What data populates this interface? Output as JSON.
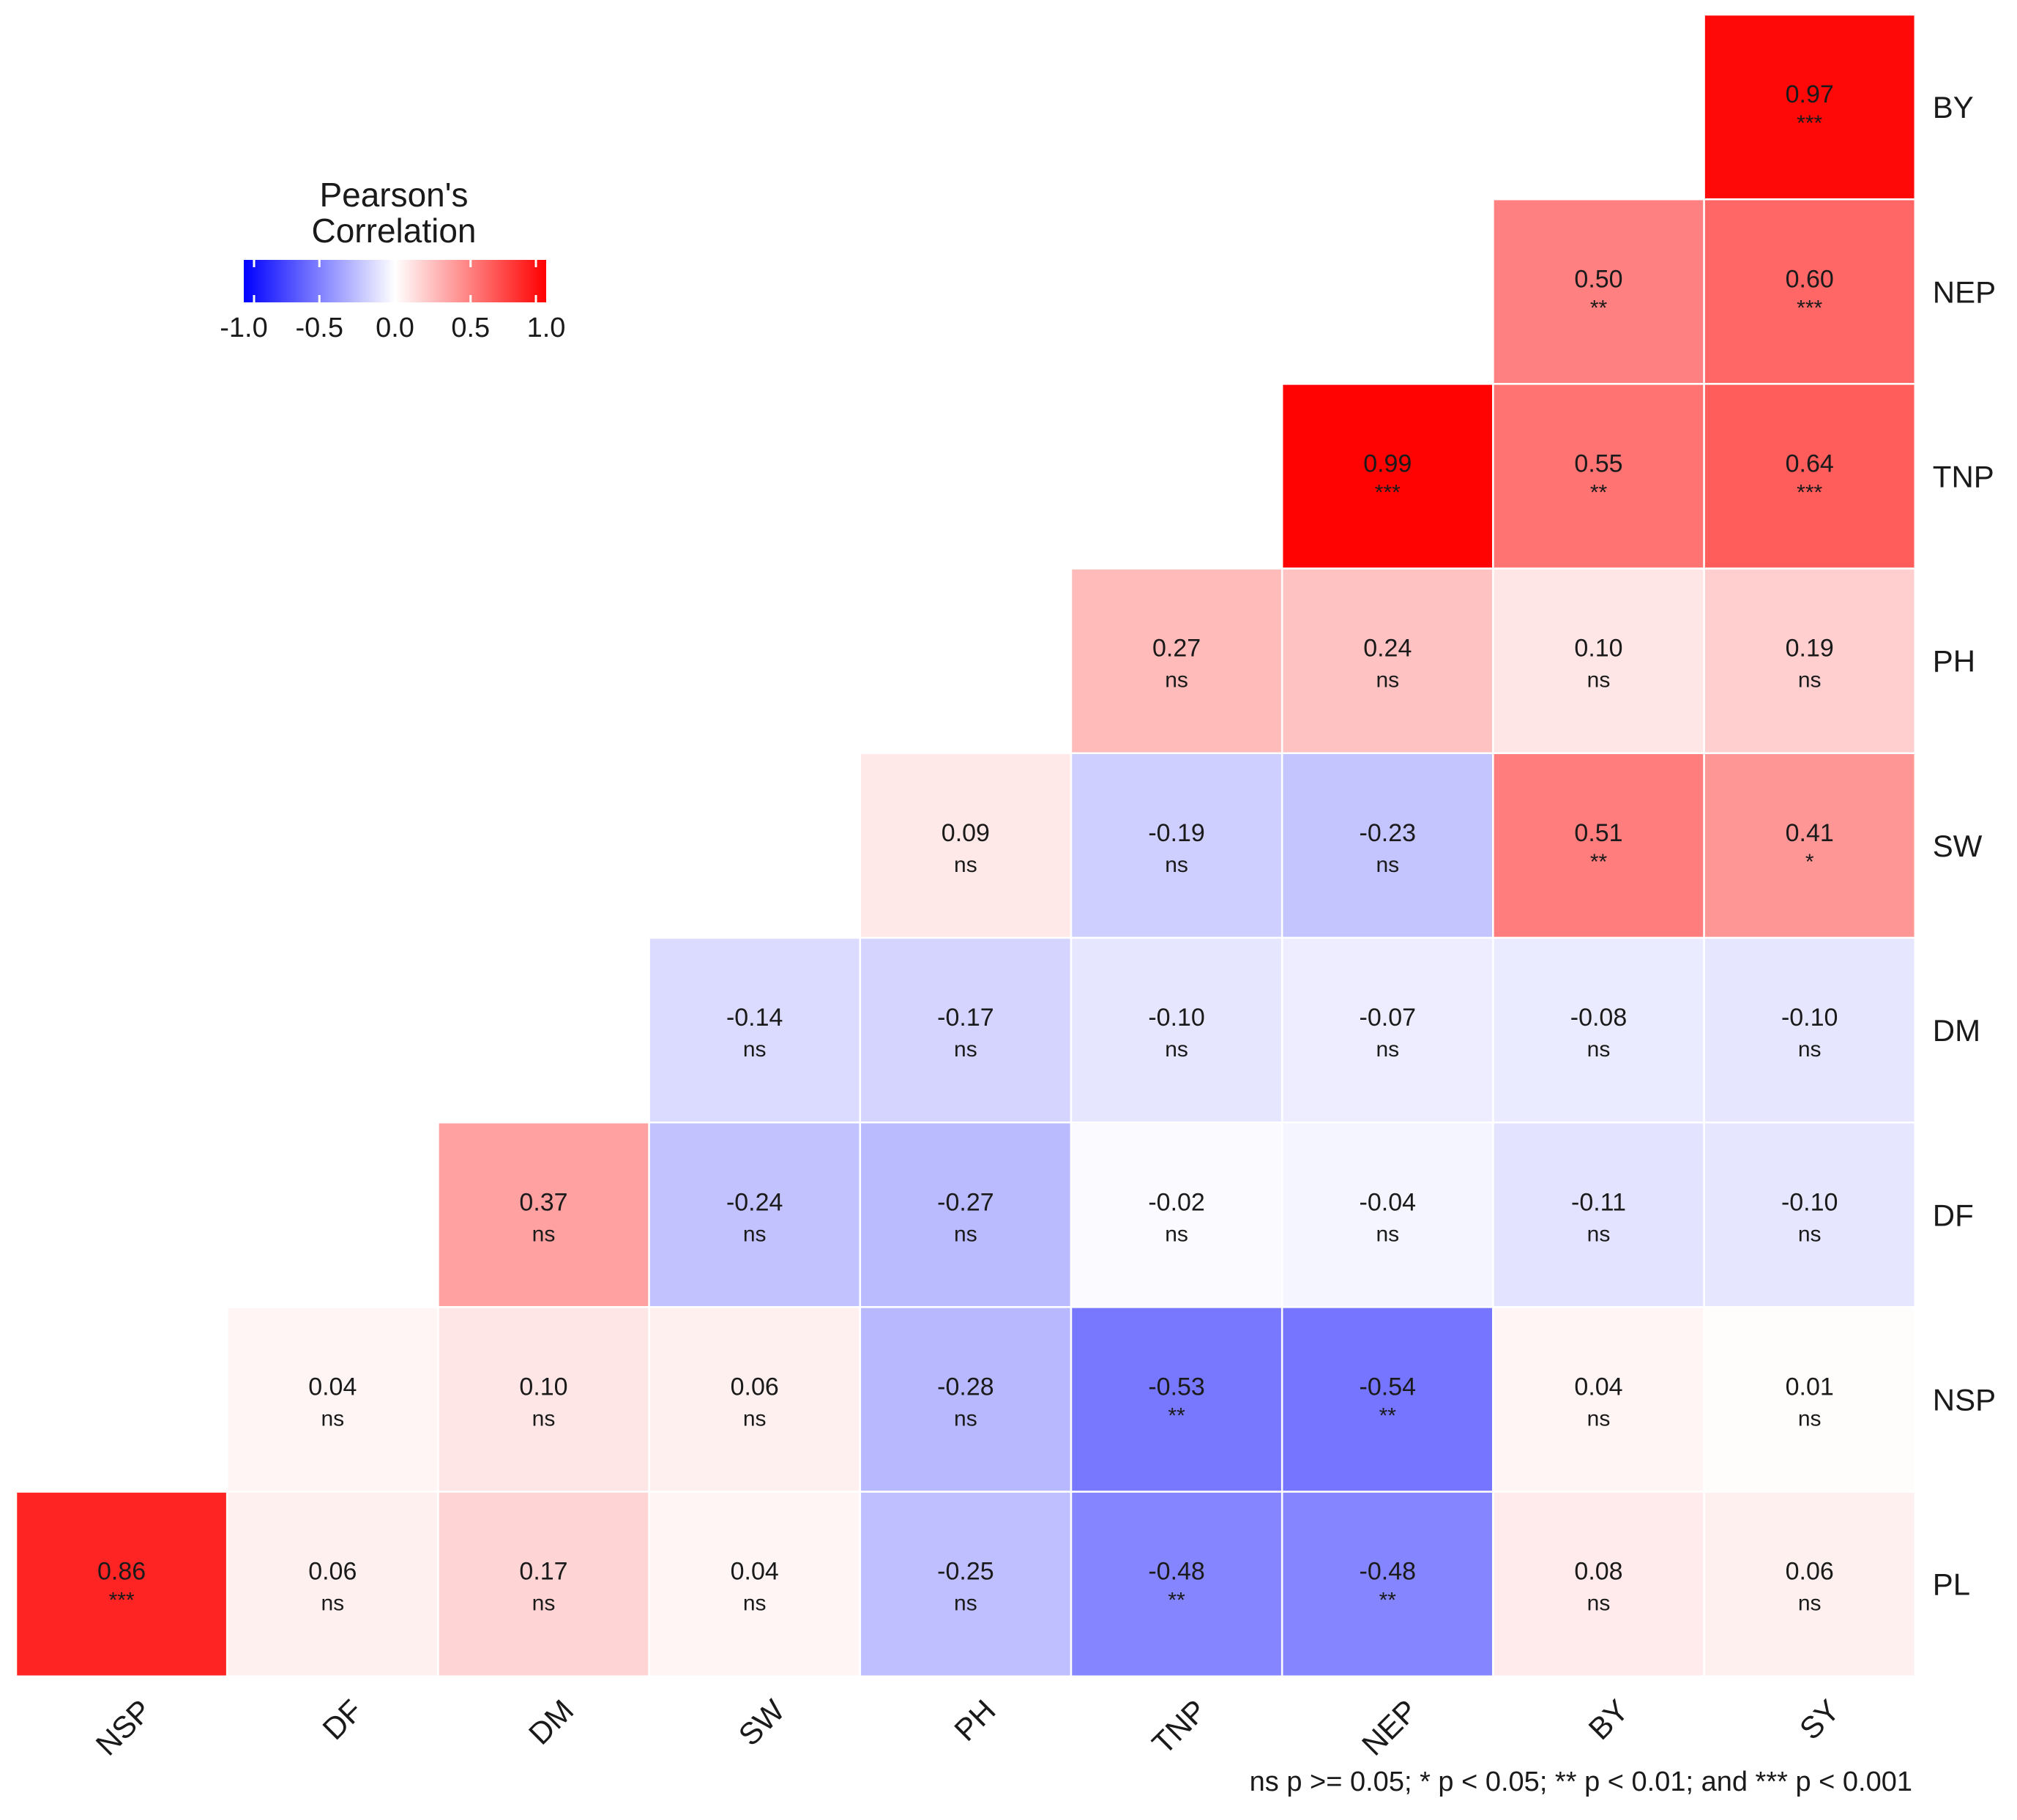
{
  "chart_data": {
    "type": "heatmap",
    "title": "",
    "legend": {
      "title_line1": "Pearson's",
      "title_line2": "Correlation",
      "ticks": [
        "-1.0",
        "-0.5",
        "0.0",
        "0.5",
        "1.0"
      ],
      "tick_values": [
        -1.0,
        -0.5,
        0.0,
        0.5,
        1.0
      ],
      "range": [
        -1.0,
        1.0
      ],
      "placement": "top-left"
    },
    "colors": {
      "low": "#0000ff",
      "mid": "#ffffff",
      "high": "#ff0000"
    },
    "x_labels": [
      "NSP",
      "DF",
      "DM",
      "SW",
      "PH",
      "TNP",
      "NEP",
      "BY",
      "SY"
    ],
    "y_labels": [
      "BY",
      "NEP",
      "TNP",
      "PH",
      "SW",
      "DM",
      "DF",
      "NSP",
      "PL"
    ],
    "cells": [
      {
        "row": 0,
        "col": 8,
        "value": 0.97,
        "label": "0.97",
        "sig": "***"
      },
      {
        "row": 1,
        "col": 7,
        "value": 0.5,
        "label": "0.50",
        "sig": "**"
      },
      {
        "row": 1,
        "col": 8,
        "value": 0.6,
        "label": "0.60",
        "sig": "***"
      },
      {
        "row": 2,
        "col": 6,
        "value": 0.99,
        "label": "0.99",
        "sig": "***"
      },
      {
        "row": 2,
        "col": 7,
        "value": 0.55,
        "label": "0.55",
        "sig": "**"
      },
      {
        "row": 2,
        "col": 8,
        "value": 0.64,
        "label": "0.64",
        "sig": "***"
      },
      {
        "row": 3,
        "col": 5,
        "value": 0.27,
        "label": "0.27",
        "sig": "ns"
      },
      {
        "row": 3,
        "col": 6,
        "value": 0.24,
        "label": "0.24",
        "sig": "ns"
      },
      {
        "row": 3,
        "col": 7,
        "value": 0.1,
        "label": "0.10",
        "sig": "ns"
      },
      {
        "row": 3,
        "col": 8,
        "value": 0.19,
        "label": "0.19",
        "sig": "ns"
      },
      {
        "row": 4,
        "col": 4,
        "value": 0.09,
        "label": "0.09",
        "sig": "ns"
      },
      {
        "row": 4,
        "col": 5,
        "value": -0.19,
        "label": "-0.19",
        "sig": "ns"
      },
      {
        "row": 4,
        "col": 6,
        "value": -0.23,
        "label": "-0.23",
        "sig": "ns"
      },
      {
        "row": 4,
        "col": 7,
        "value": 0.51,
        "label": "0.51",
        "sig": "**"
      },
      {
        "row": 4,
        "col": 8,
        "value": 0.41,
        "label": "0.41",
        "sig": "*"
      },
      {
        "row": 5,
        "col": 3,
        "value": -0.14,
        "label": "-0.14",
        "sig": "ns"
      },
      {
        "row": 5,
        "col": 4,
        "value": -0.17,
        "label": "-0.17",
        "sig": "ns"
      },
      {
        "row": 5,
        "col": 5,
        "value": -0.1,
        "label": "-0.10",
        "sig": "ns"
      },
      {
        "row": 5,
        "col": 6,
        "value": -0.07,
        "label": "-0.07",
        "sig": "ns"
      },
      {
        "row": 5,
        "col": 7,
        "value": -0.08,
        "label": "-0.08",
        "sig": "ns"
      },
      {
        "row": 5,
        "col": 8,
        "value": -0.1,
        "label": "-0.10",
        "sig": "ns"
      },
      {
        "row": 6,
        "col": 2,
        "value": 0.37,
        "label": "0.37",
        "sig": "ns"
      },
      {
        "row": 6,
        "col": 3,
        "value": -0.24,
        "label": "-0.24",
        "sig": "ns"
      },
      {
        "row": 6,
        "col": 4,
        "value": -0.27,
        "label": "-0.27",
        "sig": "ns"
      },
      {
        "row": 6,
        "col": 5,
        "value": -0.02,
        "label": "-0.02",
        "sig": "ns"
      },
      {
        "row": 6,
        "col": 6,
        "value": -0.04,
        "label": "-0.04",
        "sig": "ns"
      },
      {
        "row": 6,
        "col": 7,
        "value": -0.11,
        "label": "-0.11",
        "sig": "ns"
      },
      {
        "row": 6,
        "col": 8,
        "value": -0.1,
        "label": "-0.10",
        "sig": "ns"
      },
      {
        "row": 7,
        "col": 1,
        "value": 0.04,
        "label": "0.04",
        "sig": "ns"
      },
      {
        "row": 7,
        "col": 2,
        "value": 0.1,
        "label": "0.10",
        "sig": "ns"
      },
      {
        "row": 7,
        "col": 3,
        "value": 0.06,
        "label": "0.06",
        "sig": "ns"
      },
      {
        "row": 7,
        "col": 4,
        "value": -0.28,
        "label": "-0.28",
        "sig": "ns"
      },
      {
        "row": 7,
        "col": 5,
        "value": -0.53,
        "label": "-0.53",
        "sig": "**"
      },
      {
        "row": 7,
        "col": 6,
        "value": -0.54,
        "label": "-0.54",
        "sig": "**"
      },
      {
        "row": 7,
        "col": 7,
        "value": 0.04,
        "label": "0.04",
        "sig": "ns"
      },
      {
        "row": 7,
        "col": 8,
        "value": 0.01,
        "label": "0.01",
        "sig": "ns"
      },
      {
        "row": 8,
        "col": 0,
        "value": 0.86,
        "label": "0.86",
        "sig": "***"
      },
      {
        "row": 8,
        "col": 1,
        "value": 0.06,
        "label": "0.06",
        "sig": "ns"
      },
      {
        "row": 8,
        "col": 2,
        "value": 0.17,
        "label": "0.17",
        "sig": "ns"
      },
      {
        "row": 8,
        "col": 3,
        "value": 0.04,
        "label": "0.04",
        "sig": "ns"
      },
      {
        "row": 8,
        "col": 4,
        "value": -0.25,
        "label": "-0.25",
        "sig": "ns"
      },
      {
        "row": 8,
        "col": 5,
        "value": -0.48,
        "label": "-0.48",
        "sig": "**"
      },
      {
        "row": 8,
        "col": 6,
        "value": -0.48,
        "label": "-0.48",
        "sig": "**"
      },
      {
        "row": 8,
        "col": 7,
        "value": 0.08,
        "label": "0.08",
        "sig": "ns"
      },
      {
        "row": 8,
        "col": 8,
        "value": 0.06,
        "label": "0.06",
        "sig": "ns"
      }
    ],
    "footnote": "ns p >= 0.05; * p < 0.05; ** p < 0.01; and *** p < 0.001"
  }
}
